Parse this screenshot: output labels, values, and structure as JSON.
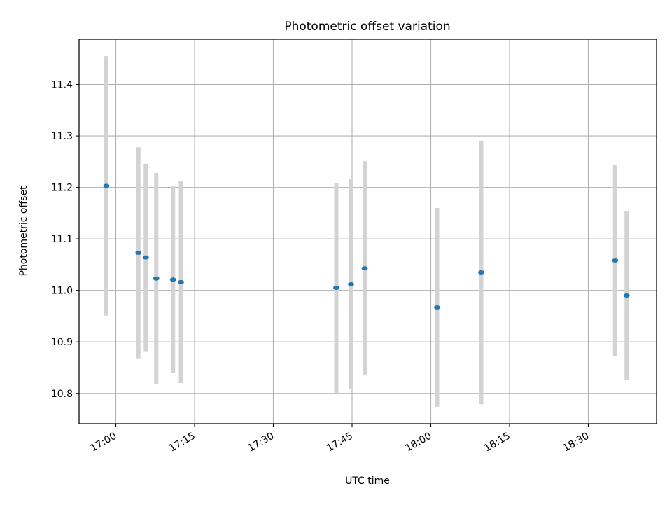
{
  "chart_data": {
    "type": "scatter",
    "title": "Photometric offset variation",
    "xlabel": "UTC time",
    "ylabel": "Photometric offset",
    "x_unit": "minutes after 17:00 UTC",
    "xlim": [
      -7,
      103
    ],
    "ylim": [
      10.7412,
      11.4878
    ],
    "xticks": [
      {
        "value": 0,
        "label": "17:00"
      },
      {
        "value": 15,
        "label": "17:15"
      },
      {
        "value": 30,
        "label": "17:30"
      },
      {
        "value": 45,
        "label": "17:45"
      },
      {
        "value": 60,
        "label": "18:00"
      },
      {
        "value": 75,
        "label": "18:15"
      },
      {
        "value": 90,
        "label": "18:30"
      }
    ],
    "yticks": [
      {
        "value": 10.8,
        "label": "10.8"
      },
      {
        "value": 10.9,
        "label": "10.9"
      },
      {
        "value": 11.0,
        "label": "11.0"
      },
      {
        "value": 11.1,
        "label": "11.1"
      },
      {
        "value": 11.2,
        "label": "11.2"
      },
      {
        "value": 11.3,
        "label": "11.3"
      },
      {
        "value": 11.4,
        "label": "11.4"
      }
    ],
    "grid": true,
    "point_color": "#1f77b4",
    "errorbar_color": "#d3d3d3",
    "points": [
      {
        "x": -1.8,
        "y": 11.203,
        "err": 0.252
      },
      {
        "x": 4.3,
        "y": 11.073,
        "err": 0.205
      },
      {
        "x": 5.7,
        "y": 11.064,
        "err": 0.182
      },
      {
        "x": 7.7,
        "y": 11.023,
        "err": 0.205
      },
      {
        "x": 10.9,
        "y": 11.021,
        "err": 0.181
      },
      {
        "x": 12.4,
        "y": 11.016,
        "err": 0.196
      },
      {
        "x": 42.0,
        "y": 11.005,
        "err": 0.204
      },
      {
        "x": 44.8,
        "y": 11.012,
        "err": 0.204
      },
      {
        "x": 47.4,
        "y": 11.043,
        "err": 0.208
      },
      {
        "x": 61.2,
        "y": 10.967,
        "err": 0.193
      },
      {
        "x": 69.6,
        "y": 11.035,
        "err": 0.256
      },
      {
        "x": 95.1,
        "y": 11.058,
        "err": 0.185
      },
      {
        "x": 97.3,
        "y": 10.99,
        "err": 0.164
      }
    ]
  }
}
